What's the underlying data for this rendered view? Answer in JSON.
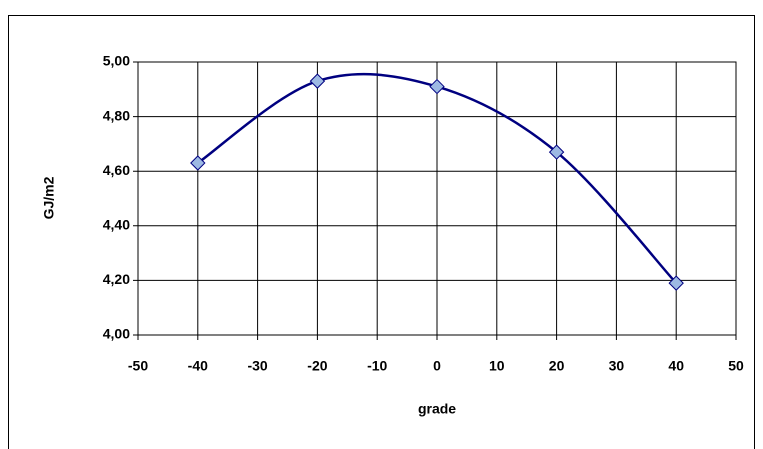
{
  "chart_data": {
    "type": "line",
    "xlabel": "grade",
    "ylabel": "GJ/m2",
    "x": [
      -40,
      -20,
      0,
      20,
      40
    ],
    "series": [
      {
        "name": null,
        "color": "#000080",
        "marker_color": "#9db9e3",
        "values": [
          4.63,
          4.93,
          4.91,
          4.67,
          4.19
        ]
      }
    ],
    "smooth": true,
    "xlim": [
      -50,
      50
    ],
    "xticks": [
      -50,
      -40,
      -30,
      -20,
      -10,
      0,
      10,
      20,
      30,
      40,
      50
    ],
    "ylim": [
      4.0,
      5.0
    ],
    "yticks": [
      {
        "value": 4.0,
        "label": "4,00"
      },
      {
        "value": 4.2,
        "label": "4,20"
      },
      {
        "value": 4.4,
        "label": "4,40"
      },
      {
        "value": 4.6,
        "label": "4,60"
      },
      {
        "value": 4.8,
        "label": "4,80"
      },
      {
        "value": 5.0,
        "label": "5,00"
      }
    ],
    "grid": true
  }
}
